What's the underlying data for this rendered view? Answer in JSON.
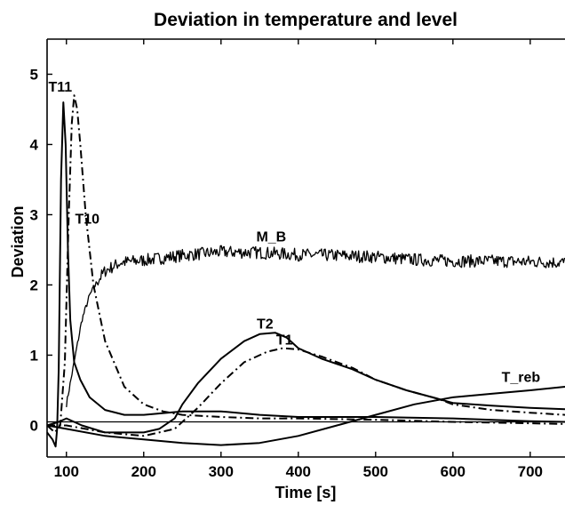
{
  "chart_data": {
    "type": "line",
    "title": "Deviation in temperature and level",
    "xlabel": "Time [s]",
    "ylabel": "Deviation",
    "xlim": [
      75,
      745
    ],
    "ylim": [
      -0.45,
      5.5
    ],
    "xticks": [
      100,
      200,
      300,
      400,
      500,
      600,
      700
    ],
    "yticks": [
      0,
      1,
      2,
      3,
      4,
      5
    ],
    "grid": false,
    "legend": "none",
    "series": [
      {
        "name": "T11",
        "style": "solid",
        "x": [
          75,
          82,
          86,
          88,
          90,
          93,
          96,
          99,
          102,
          105,
          110,
          118,
          130,
          150,
          175,
          200,
          250,
          300,
          350,
          400,
          450,
          500,
          600,
          700,
          745
        ],
        "y": [
          -0.1,
          -0.2,
          -0.3,
          -0.05,
          0.8,
          3.5,
          4.6,
          4.0,
          2.5,
          1.5,
          0.9,
          0.65,
          0.4,
          0.22,
          0.15,
          0.15,
          0.2,
          0.2,
          0.15,
          0.12,
          0.12,
          0.12,
          0.1,
          0.06,
          0.05
        ]
      },
      {
        "name": "T10",
        "style": "dashdot",
        "x": [
          75,
          85,
          92,
          98,
          103,
          107,
          110,
          114,
          118,
          125,
          135,
          150,
          175,
          200,
          225,
          250,
          300,
          350,
          400,
          500,
          600,
          700,
          745
        ],
        "y": [
          0.0,
          -0.1,
          0.0,
          0.9,
          3.0,
          4.3,
          4.7,
          4.5,
          4.0,
          3.0,
          2.0,
          1.2,
          0.55,
          0.3,
          0.2,
          0.15,
          0.12,
          0.1,
          0.1,
          0.08,
          0.05,
          0.03,
          0.02
        ]
      },
      {
        "name": "M_B",
        "style": "noisy",
        "x": [
          100,
          110,
          120,
          130,
          140,
          150,
          170,
          200,
          250,
          300,
          350,
          400,
          450,
          500,
          550,
          600,
          650,
          700,
          745
        ],
        "y": [
          0.3,
          0.9,
          1.5,
          1.85,
          2.05,
          2.2,
          2.32,
          2.35,
          2.42,
          2.47,
          2.46,
          2.43,
          2.42,
          2.4,
          2.36,
          2.34,
          2.34,
          2.33,
          2.32
        ]
      },
      {
        "name": "T2",
        "style": "solid",
        "x": [
          75,
          90,
          100,
          120,
          150,
          200,
          220,
          240,
          250,
          270,
          300,
          330,
          350,
          370,
          385,
          400,
          430,
          470,
          500,
          540,
          580,
          600,
          650,
          700,
          745
        ],
        "y": [
          0.0,
          0.05,
          0.1,
          0.0,
          -0.1,
          -0.1,
          -0.05,
          0.1,
          0.3,
          0.6,
          0.95,
          1.2,
          1.3,
          1.32,
          1.25,
          1.1,
          0.95,
          0.8,
          0.65,
          0.5,
          0.38,
          0.32,
          0.28,
          0.25,
          0.23
        ]
      },
      {
        "name": "T1",
        "style": "dashdot",
        "x": [
          75,
          100,
          150,
          200,
          240,
          270,
          300,
          330,
          360,
          380,
          400,
          430,
          470,
          500,
          540,
          580,
          600,
          650,
          700,
          745
        ],
        "y": [
          0.0,
          0.0,
          -0.1,
          -0.15,
          -0.05,
          0.25,
          0.6,
          0.9,
          1.05,
          1.1,
          1.08,
          0.98,
          0.82,
          0.65,
          0.5,
          0.38,
          0.3,
          0.22,
          0.18,
          0.15
        ]
      },
      {
        "name": "T_reb",
        "style": "solid",
        "x": [
          75,
          100,
          150,
          200,
          250,
          300,
          350,
          400,
          450,
          500,
          550,
          600,
          650,
          700,
          745
        ],
        "y": [
          0.0,
          -0.05,
          -0.15,
          -0.2,
          -0.25,
          -0.28,
          -0.25,
          -0.15,
          0.0,
          0.15,
          0.3,
          0.4,
          0.45,
          0.5,
          0.55
        ]
      }
    ],
    "annotations": [
      {
        "text": "T11",
        "x": 92,
        "y": 4.75
      },
      {
        "text": "T10",
        "x": 127,
        "y": 2.87
      },
      {
        "text": "M_B",
        "x": 365,
        "y": 2.62
      },
      {
        "text": "T2",
        "x": 357,
        "y": 1.38
      },
      {
        "text": "T1",
        "x": 382,
        "y": 1.15
      },
      {
        "text": "T_reb",
        "x": 688,
        "y": 0.62
      }
    ],
    "reference_line": {
      "y": 0.05
    }
  }
}
